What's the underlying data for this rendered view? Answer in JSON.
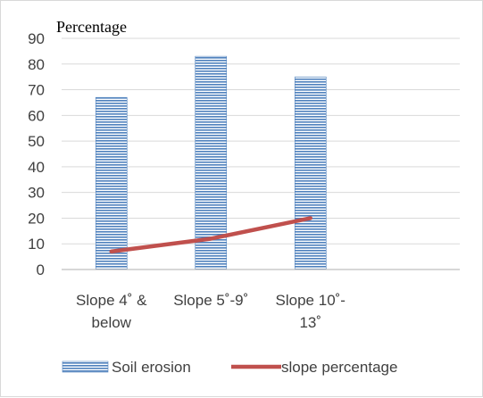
{
  "chart_data": {
    "type": "bar",
    "title": "",
    "ylabel": "Percentage",
    "xlabel": "",
    "ylim": [
      0,
      90
    ],
    "y_ticks": [
      0,
      10,
      20,
      30,
      40,
      50,
      60,
      70,
      80,
      90
    ],
    "grid": true,
    "categories": [
      [
        "Slope 4˚ &",
        "below"
      ],
      [
        "Slope 5˚-9˚"
      ],
      [
        "Slope 10˚-",
        "13˚"
      ]
    ],
    "series": [
      {
        "name": "Soil erosion",
        "kind": "bar",
        "values": [
          67,
          83,
          75
        ],
        "color": "#4f81bd"
      },
      {
        "name": "slope percentage",
        "kind": "line",
        "values": [
          7,
          12,
          20
        ],
        "color": "#c0504d"
      }
    ],
    "legend_position": "bottom"
  }
}
